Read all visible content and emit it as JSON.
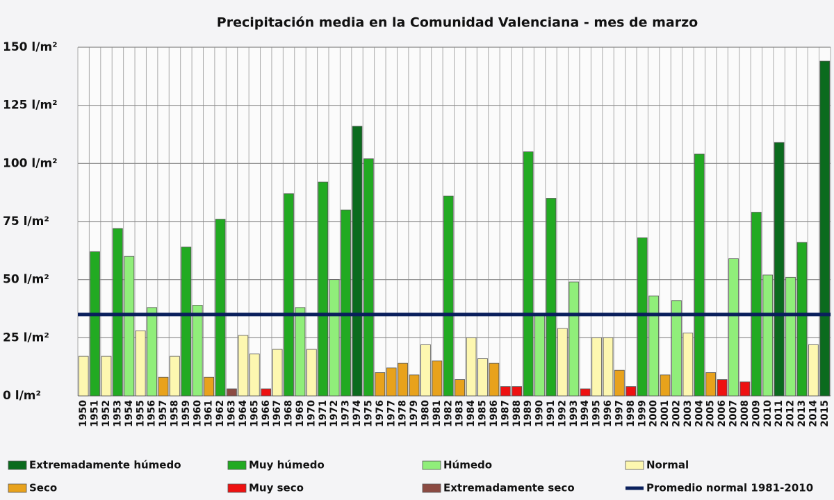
{
  "chart_data": {
    "type": "bar",
    "title": "Precipitación media en la Comunidad Valenciana - mes de marzo",
    "categories": [
      1950,
      1951,
      1952,
      1953,
      1954,
      1955,
      1956,
      1957,
      1958,
      1959,
      1960,
      1961,
      1962,
      1963,
      1964,
      1965,
      1966,
      1967,
      1968,
      1969,
      1970,
      1971,
      1972,
      1973,
      1974,
      1975,
      1976,
      1977,
      1978,
      1979,
      1980,
      1981,
      1982,
      1983,
      1984,
      1985,
      1986,
      1987,
      1988,
      1989,
      1990,
      1991,
      1992,
      1993,
      1994,
      1995,
      1996,
      1997,
      1998,
      1999,
      2000,
      2001,
      2002,
      2003,
      2004,
      2005,
      2006,
      2007,
      2008,
      2009,
      2010,
      2011,
      2012,
      2013,
      2014,
      2015
    ],
    "series": [
      {
        "name": "Extremadamente húmedo",
        "color": "#0b6b1e",
        "x": [
          1974,
          2011,
          2015
        ],
        "values": [
          116,
          109,
          144
        ]
      },
      {
        "name": "Muy húmedo",
        "color": "#22aa22",
        "x": [
          1951,
          1953,
          1959,
          1962,
          1968,
          1971,
          1973,
          1975,
          1982,
          1989,
          1991,
          1999,
          2004,
          2009,
          2013
        ],
        "values": [
          62,
          72,
          64,
          76,
          87,
          92,
          80,
          102,
          86,
          105,
          85,
          68,
          104,
          79,
          66
        ]
      },
      {
        "name": "Húmedo",
        "color": "#90ee7a",
        "x": [
          1954,
          1956,
          1960,
          1969,
          1972,
          1990,
          1993,
          2000,
          2002,
          2007,
          2010,
          2012
        ],
        "values": [
          60,
          38,
          39,
          38,
          50,
          35,
          49,
          43,
          41,
          59,
          52,
          51
        ]
      },
      {
        "name": "Normal",
        "color": "#fdf7b0",
        "x": [
          1950,
          1952,
          1955,
          1958,
          1964,
          1965,
          1967,
          1970,
          1980,
          1984,
          1985,
          1992,
          1995,
          1996,
          2003,
          2014
        ],
        "values": [
          17,
          17,
          28,
          17,
          26,
          18,
          20,
          20,
          22,
          25,
          16,
          29,
          25,
          25,
          27,
          22
        ]
      },
      {
        "name": "Seco",
        "color": "#e8a21c",
        "x": [
          1957,
          1961,
          1976,
          1977,
          1978,
          1979,
          1981,
          1983,
          1986,
          1997,
          2001,
          2005
        ],
        "values": [
          8,
          8,
          10,
          12,
          14,
          9,
          15,
          7,
          14,
          11,
          9,
          10
        ]
      },
      {
        "name": "Muy seco",
        "color": "#ee1111",
        "x": [
          1966,
          1987,
          1988,
          1994,
          1998,
          2006,
          2008
        ],
        "values": [
          3,
          4,
          4,
          3,
          4,
          7,
          6
        ]
      },
      {
        "name": "Extremadamente seco",
        "color": "#8b4a42",
        "x": [
          1963
        ],
        "values": [
          3
        ]
      }
    ],
    "reference_line": {
      "name": "Promedio normal 1981-2010",
      "value": 35,
      "color": "#0a1f5c"
    },
    "ylim": [
      0,
      150
    ],
    "yticks": [
      {
        "value": 0,
        "label": "0 l/m²"
      },
      {
        "value": 25,
        "label": "25 l/m²"
      },
      {
        "value": 50,
        "label": "50 l/m²"
      },
      {
        "value": 75,
        "label": "75 l/m²"
      },
      {
        "value": 100,
        "label": "100 l/m²"
      },
      {
        "value": 125,
        "label": "125 l/m²"
      },
      {
        "value": 150,
        "label": "150 l/m²"
      }
    ],
    "grid": true
  }
}
